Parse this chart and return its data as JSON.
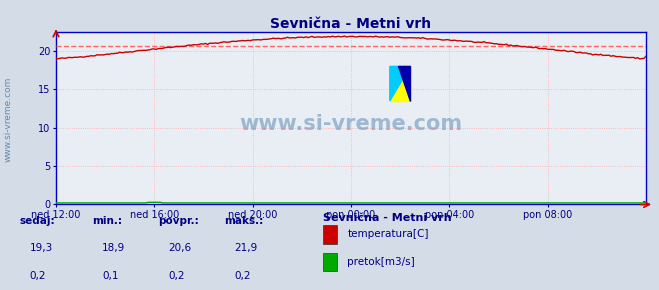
{
  "title": "Sevnična - Metni vrh",
  "bg_color": "#d4dce8",
  "plot_bg_color": "#e8eef4",
  "grid_color": "#ffaaaa",
  "grid_color2": "#dddddd",
  "temp_color": "#cc0000",
  "flow_color": "#00aa00",
  "avg_line_color": "#ff6666",
  "axis_color": "#0000cc",
  "text_color": "#000080",
  "title_color": "#000080",
  "yticks": [
    0,
    5,
    10,
    15,
    20
  ],
  "ylim": [
    0,
    22.5
  ],
  "xlim": [
    0,
    288
  ],
  "xtick_positions": [
    0,
    48,
    96,
    144,
    192,
    240
  ],
  "xtick_labels": [
    "ned 12:00",
    "ned 16:00",
    "ned 20:00",
    "pon 00:00",
    "pon 04:00",
    "pon 08:00"
  ],
  "avg_temp": 20.6,
  "watermark": "www.si-vreme.com",
  "watermark_color": "#4477aa",
  "footer_labels": [
    "sedaj:",
    "min.:",
    "povpr.:",
    "maks.:"
  ],
  "footer_temp": [
    "19,3",
    "18,9",
    "20,6",
    "21,9"
  ],
  "footer_flow": [
    "0,2",
    "0,1",
    "0,2",
    "0,2"
  ],
  "legend_title": "Sevnična - Metni vrh",
  "legend_items": [
    "temperatura[C]",
    "pretok[m3/s]"
  ],
  "legend_colors": [
    "#cc0000",
    "#00aa00"
  ],
  "sidewater_color": "#6688aa"
}
